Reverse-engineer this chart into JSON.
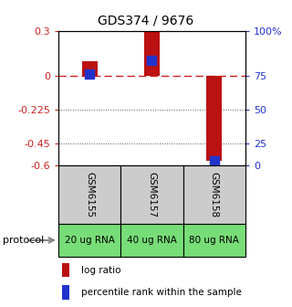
{
  "title": "GDS374 / 9676",
  "samples": [
    "GSM6155",
    "GSM6157",
    "GSM6158"
  ],
  "protocol_labels": [
    "20 ug RNA",
    "40 ug RNA",
    "80 ug RNA"
  ],
  "log_ratios": [
    0.095,
    0.295,
    -0.565
  ],
  "percentile_ranks": [
    68,
    78,
    4
  ],
  "ylim": [
    -0.6,
    0.3
  ],
  "yticks_left": [
    0.3,
    0,
    -0.225,
    -0.45,
    -0.6
  ],
  "yticks_right_vals": [
    100,
    75,
    50,
    25,
    0
  ],
  "yticks_right_positions": [
    0.3,
    0.0,
    -0.225,
    -0.45,
    -0.6
  ],
  "bar_color": "#bb1111",
  "dot_color": "#2233cc",
  "zero_line_color": "#cc2222",
  "grid_color": "#555555",
  "sample_box_color": "#cccccc",
  "protocol_box_color": "#77dd77",
  "bar_width": 0.25,
  "dot_size": 45,
  "title_fontsize": 10,
  "tick_fontsize": 8,
  "sample_fontsize": 7.5,
  "protocol_fontsize": 7.5,
  "legend_fontsize": 7.5
}
